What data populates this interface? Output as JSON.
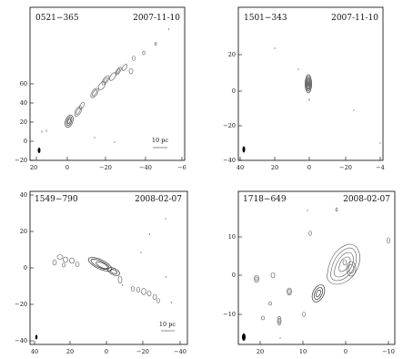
{
  "panels": [
    {
      "source": "0521−365",
      "date": "2007-11-10",
      "scale_label": "10 pc",
      "xticks": [
        "20",
        "0",
        "−20",
        "−40",
        "−6"
      ],
      "yticks": [
        "60",
        "40",
        "20",
        "0",
        "−20"
      ]
    },
    {
      "source": "1501−343",
      "date": "2007-11-10",
      "xticks": [
        "40",
        "20",
        "0",
        "−20",
        "−4"
      ],
      "yticks": [
        "20",
        "0",
        "−20",
        "−40"
      ]
    },
    {
      "source": "1549−790",
      "date": "2008-02-07",
      "scale_label": "10 pc",
      "xticks": [
        "40",
        "20",
        "0",
        "−20",
        "−40"
      ],
      "yticks": [
        "40",
        "20",
        "0",
        "−20",
        "−40"
      ]
    },
    {
      "source": "1718−649",
      "date": "2008-02-07",
      "xticks": [
        "20",
        "10",
        "0",
        "−10"
      ],
      "yticks": [
        "10",
        "0",
        "−10"
      ]
    }
  ]
}
